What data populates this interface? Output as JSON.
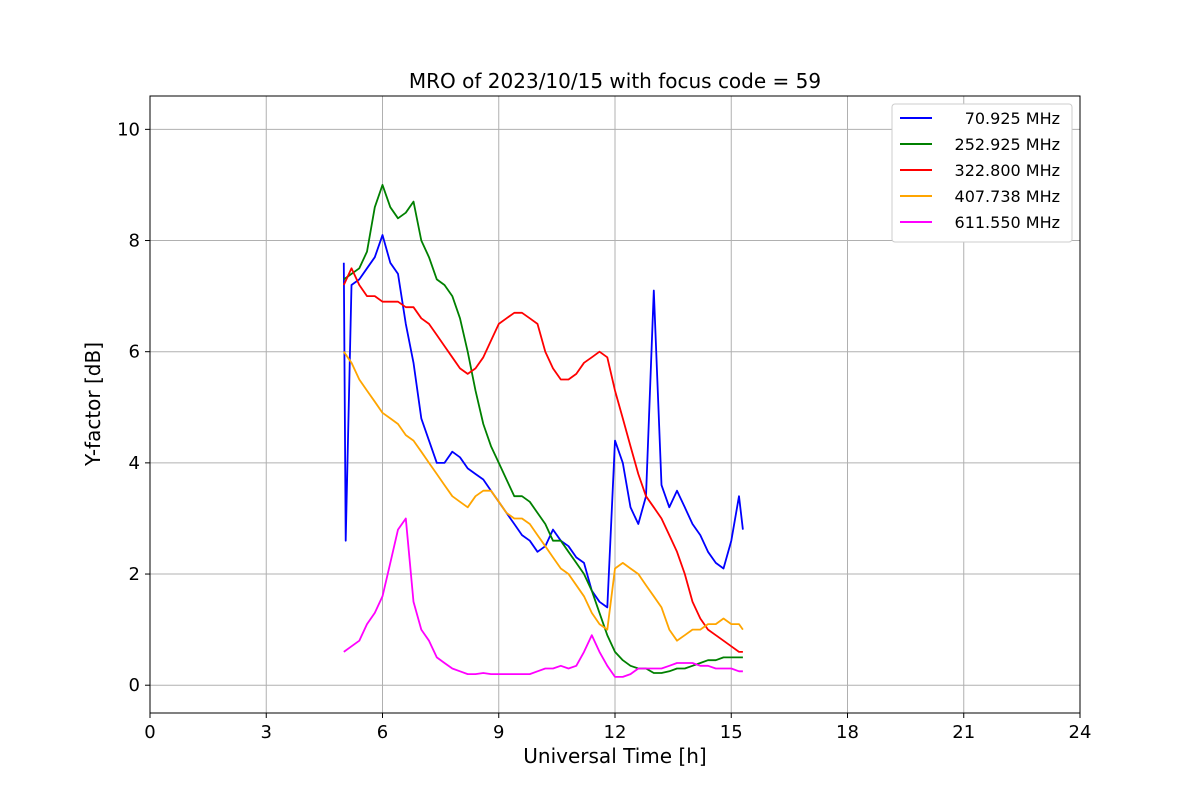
{
  "chart_data": {
    "type": "line",
    "title": "MRO of 2023/10/15 with focus code = 59",
    "xlabel": "Universal Time [h]",
    "ylabel": "Y-factor [dB]",
    "xlim": [
      0,
      24
    ],
    "ylim": [
      -0.5,
      10.6
    ],
    "xticks": [
      0,
      3,
      6,
      9,
      12,
      15,
      18,
      21,
      24
    ],
    "yticks": [
      0,
      2,
      4,
      6,
      8,
      10
    ],
    "grid": true,
    "legend_position": "top-right",
    "series": [
      {
        "name": "70.925 MHz",
        "color": "#0000ff",
        "x": [
          5.0,
          5.05,
          5.2,
          5.4,
          5.6,
          5.8,
          6.0,
          6.2,
          6.4,
          6.6,
          6.8,
          7.0,
          7.2,
          7.4,
          7.6,
          7.8,
          8.0,
          8.2,
          8.4,
          8.6,
          8.8,
          9.0,
          9.2,
          9.4,
          9.6,
          9.8,
          10.0,
          10.2,
          10.4,
          10.6,
          10.8,
          11.0,
          11.2,
          11.4,
          11.6,
          11.8,
          12.0,
          12.2,
          12.4,
          12.6,
          12.8,
          13.0,
          13.2,
          13.4,
          13.6,
          13.8,
          14.0,
          14.2,
          14.4,
          14.6,
          14.8,
          15.0,
          15.2,
          15.3
        ],
        "y": [
          7.6,
          2.6,
          7.2,
          7.3,
          7.5,
          7.7,
          8.1,
          7.6,
          7.4,
          6.5,
          5.8,
          4.8,
          4.4,
          4.0,
          4.0,
          4.2,
          4.1,
          3.9,
          3.8,
          3.7,
          3.5,
          3.3,
          3.1,
          2.9,
          2.7,
          2.6,
          2.4,
          2.5,
          2.8,
          2.6,
          2.5,
          2.3,
          2.2,
          1.7,
          1.5,
          1.4,
          4.4,
          4.0,
          3.2,
          2.9,
          3.4,
          7.1,
          3.6,
          3.2,
          3.5,
          3.2,
          2.9,
          2.7,
          2.4,
          2.2,
          2.1,
          2.6,
          3.4,
          2.8
        ]
      },
      {
        "name": "252.925 MHz",
        "color": "#008000",
        "x": [
          5.0,
          5.2,
          5.4,
          5.6,
          5.8,
          6.0,
          6.2,
          6.4,
          6.6,
          6.8,
          7.0,
          7.2,
          7.4,
          7.6,
          7.8,
          8.0,
          8.2,
          8.4,
          8.6,
          8.8,
          9.0,
          9.2,
          9.4,
          9.6,
          9.8,
          10.0,
          10.2,
          10.4,
          10.6,
          10.8,
          11.0,
          11.2,
          11.4,
          11.6,
          11.8,
          12.0,
          12.2,
          12.4,
          12.6,
          12.8,
          13.0,
          13.2,
          13.4,
          13.6,
          13.8,
          14.0,
          14.2,
          14.4,
          14.6,
          14.8,
          15.0,
          15.2,
          15.3
        ],
        "y": [
          7.3,
          7.4,
          7.5,
          7.8,
          8.6,
          9.0,
          8.6,
          8.4,
          8.5,
          8.7,
          8.0,
          7.7,
          7.3,
          7.2,
          7.0,
          6.6,
          6.0,
          5.3,
          4.7,
          4.3,
          4.0,
          3.7,
          3.4,
          3.4,
          3.3,
          3.1,
          2.9,
          2.6,
          2.6,
          2.4,
          2.2,
          2.0,
          1.7,
          1.3,
          0.9,
          0.6,
          0.45,
          0.35,
          0.3,
          0.3,
          0.22,
          0.22,
          0.25,
          0.3,
          0.3,
          0.35,
          0.4,
          0.45,
          0.45,
          0.5,
          0.5,
          0.5,
          0.5
        ]
      },
      {
        "name": "322.800 MHz",
        "color": "#ff0000",
        "x": [
          5.0,
          5.2,
          5.4,
          5.6,
          5.8,
          6.0,
          6.2,
          6.4,
          6.6,
          6.8,
          7.0,
          7.2,
          7.4,
          7.6,
          7.8,
          8.0,
          8.2,
          8.4,
          8.6,
          8.8,
          9.0,
          9.2,
          9.4,
          9.6,
          9.8,
          10.0,
          10.2,
          10.4,
          10.6,
          10.8,
          11.0,
          11.2,
          11.4,
          11.6,
          11.8,
          12.0,
          12.2,
          12.4,
          12.6,
          12.8,
          13.0,
          13.2,
          13.4,
          13.6,
          13.8,
          14.0,
          14.2,
          14.4,
          14.6,
          14.8,
          15.0,
          15.2,
          15.3
        ],
        "y": [
          7.2,
          7.5,
          7.2,
          7.0,
          7.0,
          6.9,
          6.9,
          6.9,
          6.8,
          6.8,
          6.6,
          6.5,
          6.3,
          6.1,
          5.9,
          5.7,
          5.6,
          5.7,
          5.9,
          6.2,
          6.5,
          6.6,
          6.7,
          6.7,
          6.6,
          6.5,
          6.0,
          5.7,
          5.5,
          5.5,
          5.6,
          5.8,
          5.9,
          6.0,
          5.9,
          5.3,
          4.8,
          4.3,
          3.8,
          3.4,
          3.2,
          3.0,
          2.7,
          2.4,
          2.0,
          1.5,
          1.2,
          1.0,
          0.9,
          0.8,
          0.7,
          0.6,
          0.6
        ]
      },
      {
        "name": "407.738 MHz",
        "color": "#ffa500",
        "x": [
          5.0,
          5.2,
          5.4,
          5.6,
          5.8,
          6.0,
          6.2,
          6.4,
          6.6,
          6.8,
          7.0,
          7.2,
          7.4,
          7.6,
          7.8,
          8.0,
          8.2,
          8.4,
          8.6,
          8.8,
          9.0,
          9.2,
          9.4,
          9.6,
          9.8,
          10.0,
          10.2,
          10.4,
          10.6,
          10.8,
          11.0,
          11.2,
          11.4,
          11.6,
          11.8,
          12.0,
          12.2,
          12.4,
          12.6,
          12.8,
          13.0,
          13.2,
          13.4,
          13.6,
          13.8,
          14.0,
          14.2,
          14.4,
          14.6,
          14.8,
          15.0,
          15.2,
          15.3
        ],
        "y": [
          6.0,
          5.8,
          5.5,
          5.3,
          5.1,
          4.9,
          4.8,
          4.7,
          4.5,
          4.4,
          4.2,
          4.0,
          3.8,
          3.6,
          3.4,
          3.3,
          3.2,
          3.4,
          3.5,
          3.5,
          3.3,
          3.1,
          3.0,
          3.0,
          2.9,
          2.7,
          2.5,
          2.3,
          2.1,
          2.0,
          1.8,
          1.6,
          1.3,
          1.1,
          1.0,
          2.1,
          2.2,
          2.1,
          2.0,
          1.8,
          1.6,
          1.4,
          1.0,
          0.8,
          0.9,
          1.0,
          1.0,
          1.1,
          1.1,
          1.2,
          1.1,
          1.1,
          1.0
        ]
      },
      {
        "name": "611.550 MHz",
        "color": "#ff00ff",
        "x": [
          5.0,
          5.2,
          5.4,
          5.6,
          5.8,
          6.0,
          6.2,
          6.4,
          6.6,
          6.8,
          7.0,
          7.2,
          7.4,
          7.6,
          7.8,
          8.0,
          8.2,
          8.4,
          8.6,
          8.8,
          9.0,
          9.2,
          9.4,
          9.6,
          9.8,
          10.0,
          10.2,
          10.4,
          10.6,
          10.8,
          11.0,
          11.2,
          11.4,
          11.6,
          11.8,
          12.0,
          12.2,
          12.4,
          12.6,
          12.8,
          13.0,
          13.2,
          13.4,
          13.6,
          13.8,
          14.0,
          14.2,
          14.4,
          14.6,
          14.8,
          15.0,
          15.2,
          15.3
        ],
        "y": [
          0.6,
          0.7,
          0.8,
          1.1,
          1.3,
          1.6,
          2.2,
          2.8,
          3.0,
          1.5,
          1.0,
          0.8,
          0.5,
          0.4,
          0.3,
          0.25,
          0.2,
          0.2,
          0.22,
          0.2,
          0.2,
          0.2,
          0.2,
          0.2,
          0.2,
          0.25,
          0.3,
          0.3,
          0.35,
          0.3,
          0.35,
          0.6,
          0.9,
          0.6,
          0.35,
          0.15,
          0.15,
          0.2,
          0.3,
          0.3,
          0.3,
          0.3,
          0.35,
          0.4,
          0.4,
          0.4,
          0.35,
          0.35,
          0.3,
          0.3,
          0.3,
          0.25,
          0.25
        ]
      }
    ]
  }
}
